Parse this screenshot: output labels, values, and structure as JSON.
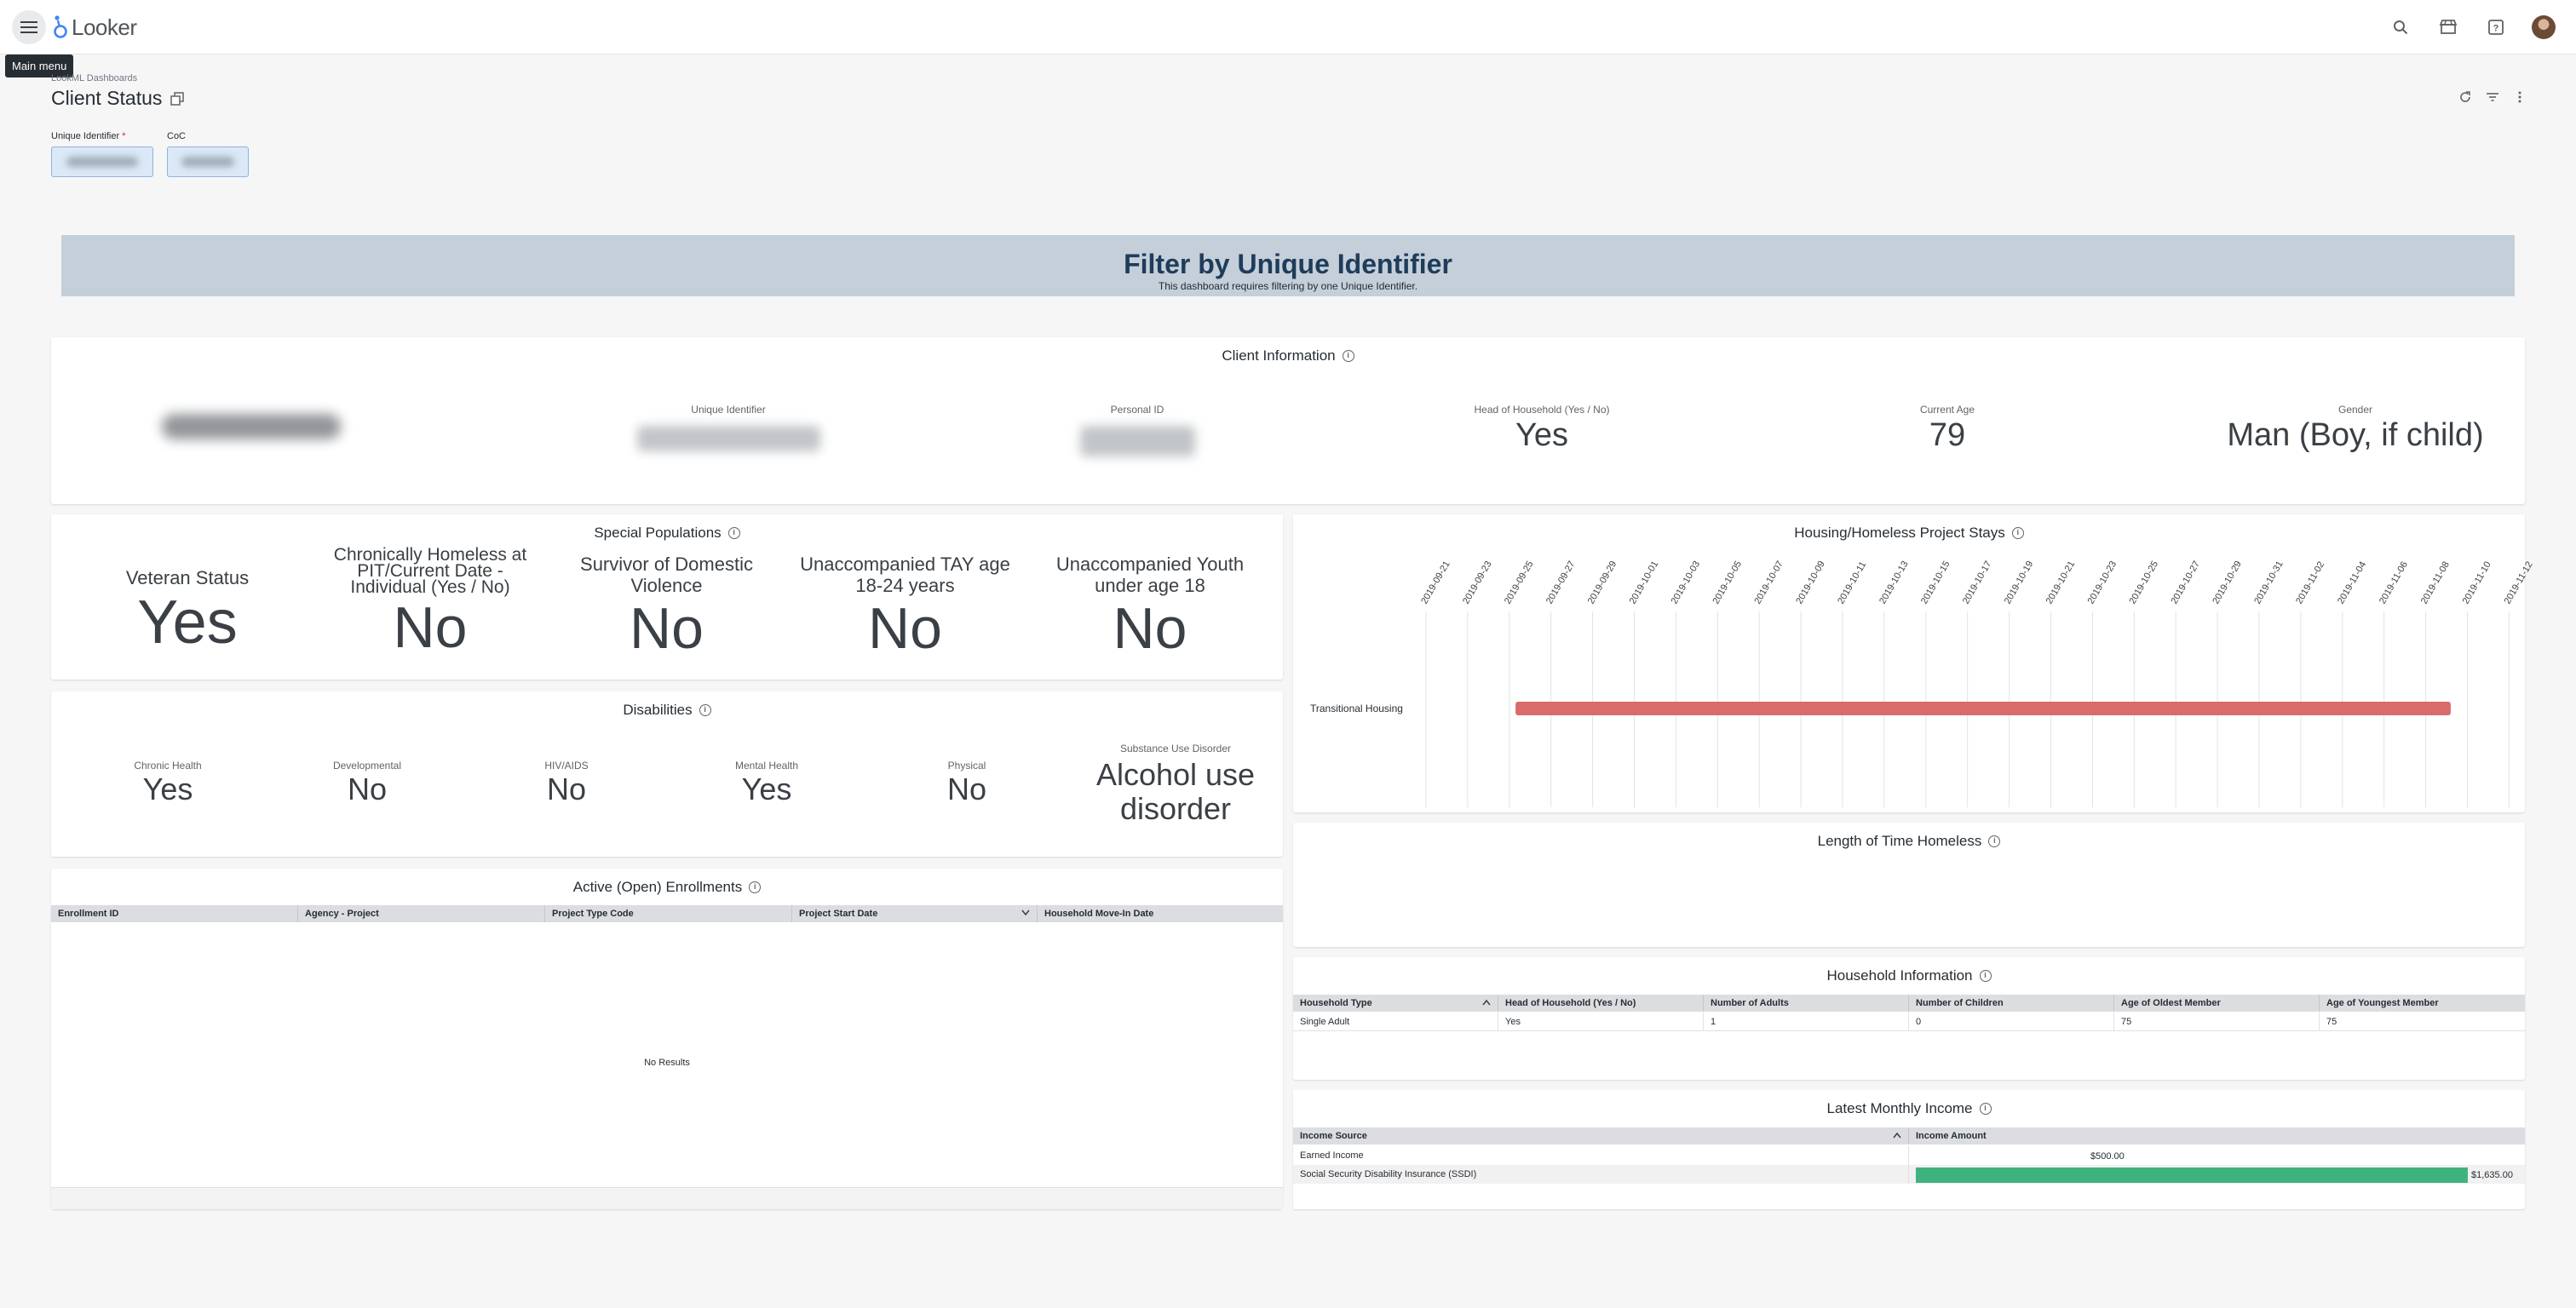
{
  "topbar": {
    "logo_text": "Looker",
    "tooltip": "Main menu",
    "icons": [
      "menu-icon",
      "search-icon",
      "marketplace-icon",
      "help-icon",
      "avatar"
    ]
  },
  "header": {
    "breadcrumb": "LookML Dashboards",
    "title": "Client Status"
  },
  "filters": [
    {
      "label": "Unique Identifier",
      "required_mark": "*"
    },
    {
      "label": "CoC"
    }
  ],
  "banner": {
    "title": "Filter by Unique Identifier",
    "subtitle": "This dashboard requires filtering by one Unique Identifier."
  },
  "client_info": {
    "title": "Client Information",
    "labels": {
      "unique_identifier": "Unique Identifier",
      "personal_id": "Personal ID",
      "head_of_household": "Head of Household (Yes / No)",
      "current_age": "Current Age",
      "gender": "Gender"
    },
    "values": {
      "head_of_household": "Yes",
      "current_age": "79",
      "gender": "Man (Boy, if child)"
    }
  },
  "special_populations": {
    "title": "Special Populations",
    "items": [
      {
        "label": "Veteran Status",
        "value": "Yes"
      },
      {
        "label": "Chronically Homeless at PIT/Current Date - Individual (Yes / No)",
        "value": "No"
      },
      {
        "label": "Survivor of Domestic Violence",
        "value": "No"
      },
      {
        "label": "Unaccompanied TAY age 18-24 years",
        "value": "No"
      },
      {
        "label": "Unaccompanied Youth under age 18",
        "value": "No"
      }
    ]
  },
  "disabilities": {
    "title": "Disabilities",
    "items": [
      {
        "label": "Chronic Health",
        "value": "Yes"
      },
      {
        "label": "Developmental",
        "value": "No"
      },
      {
        "label": "HIV/AIDS",
        "value": "No"
      },
      {
        "label": "Mental Health",
        "value": "Yes"
      },
      {
        "label": "Physical",
        "value": "No"
      },
      {
        "label": "Substance Use Disorder",
        "value": "Alcohol use disorder"
      }
    ]
  },
  "enrollments": {
    "title": "Active (Open) Enrollments",
    "columns": [
      "Enrollment ID",
      "Agency - Project",
      "Project Type Code",
      "Project Start Date",
      "Household Move-In Date"
    ],
    "empty_text": "No Results"
  },
  "project_stays": {
    "title": "Housing/Homeless Project Stays",
    "dates": [
      "2019-09-21",
      "2019-09-23",
      "2019-09-25",
      "2019-09-27",
      "2019-09-29",
      "2019-10-01",
      "2019-10-03",
      "2019-10-05",
      "2019-10-07",
      "2019-10-09",
      "2019-10-11",
      "2019-10-13",
      "2019-10-15",
      "2019-10-17",
      "2019-10-19",
      "2019-10-21",
      "2019-10-23",
      "2019-10-25",
      "2019-10-27",
      "2019-10-29",
      "2019-10-31",
      "2019-11-02",
      "2019-11-04",
      "2019-11-06",
      "2019-11-08",
      "2019-11-10",
      "2019-11-12"
    ],
    "rows": [
      {
        "label": "Transitional Housing",
        "start_index": 2.15,
        "end_index": 24.6,
        "color": "#d96b6b"
      }
    ]
  },
  "length_homeless": {
    "title": "Length of Time Homeless"
  },
  "household": {
    "title": "Household Information",
    "columns": [
      "Household Type",
      "Head of Household (Yes / No)",
      "Number of Adults",
      "Number of Children",
      "Age of Oldest Member",
      "Age of Youngest Member"
    ],
    "rows": [
      [
        "Single Adult",
        "Yes",
        "1",
        "0",
        "75",
        "75"
      ]
    ]
  },
  "income": {
    "title": "Latest Monthly Income",
    "columns": [
      "Income Source",
      "Income Amount"
    ],
    "max_amount": 1635,
    "bar_color": "#3fb27f",
    "rows": [
      {
        "source": "Earned Income",
        "amount_label": "$500.00",
        "amount": 500,
        "show_bar": false
      },
      {
        "source": "Social Security Disability Insurance (SSDI)",
        "amount_label": "$1,635.00",
        "amount": 1635,
        "show_bar": true
      }
    ]
  }
}
